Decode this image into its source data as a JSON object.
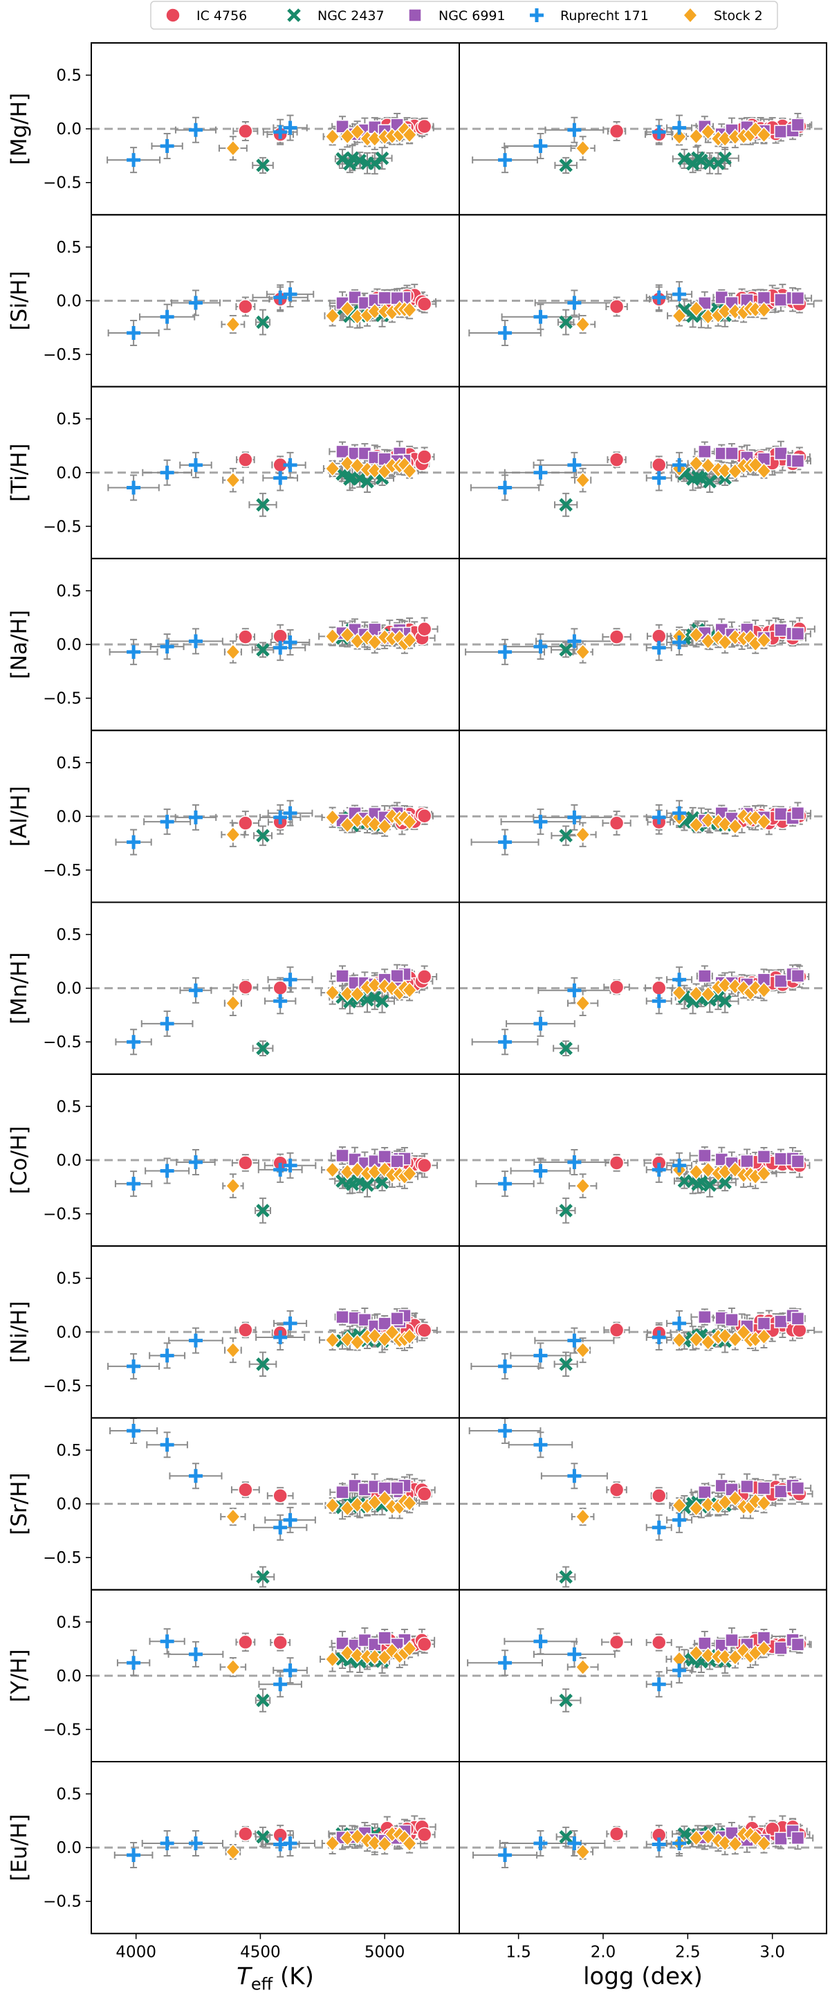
{
  "chart_data": {
    "type": "scatter",
    "title": "",
    "legend_position": "top-center",
    "legend": [
      {
        "name": "IC 4756",
        "color": "#e8475a",
        "marker": "circle"
      },
      {
        "name": "NGC 2437",
        "color": "#198a6a",
        "marker": "x"
      },
      {
        "name": "NGC 6991",
        "color": "#9b59b6",
        "marker": "square"
      },
      {
        "name": "Ruprecht 171",
        "color": "#1e90e8",
        "marker": "plus"
      },
      {
        "name": "Stock 2",
        "color": "#f5a623",
        "marker": "diamond"
      }
    ],
    "left_xaxis": {
      "label_main": "T",
      "label_sub": "eff",
      "label_unit": " (K)",
      "range": [
        3820,
        5300
      ],
      "ticks": [
        4000,
        4500,
        5000
      ],
      "tick_labels": [
        "4000",
        "4500",
        "5000"
      ]
    },
    "right_xaxis": {
      "label": "logg (dex)",
      "range": [
        1.15,
        3.32
      ],
      "ticks": [
        1.5,
        2.0,
        2.5,
        3.0
      ],
      "tick_labels": [
        "1.5",
        "2.0",
        "2.5",
        "3.0"
      ]
    },
    "yaxis": {
      "range": [
        -0.8,
        0.8
      ],
      "ticks": [
        0.5,
        0.0,
        -0.5
      ],
      "tick_labels": [
        "0.5",
        "0.0",
        "−0.5"
      ],
      "reference_line": 0.0
    },
    "panels": [
      {
        "ylabel": "[Mg/H]",
        "cluster_means": [
          -0.02,
          -0.3,
          -0.01,
          -0.05,
          -0.06
        ],
        "ruprecht": [
          -0.29,
          -0.16,
          -0.01,
          -0.03,
          0.01
        ],
        "ngc2437_cool": -0.34
      },
      {
        "ylabel": "[Si/H]",
        "cluster_means": [
          0.0,
          -0.12,
          0.0,
          -0.04,
          -0.1
        ],
        "ruprecht": [
          -0.3,
          -0.15,
          -0.02,
          0.03,
          0.06
        ],
        "ngc2437_cool": -0.2
      },
      {
        "ylabel": "[Ti/H]",
        "cluster_means": [
          0.12,
          -0.05,
          0.15,
          -0.05,
          0.05
        ],
        "ruprecht": [
          -0.14,
          0.0,
          0.07,
          -0.05,
          0.07
        ],
        "ngc2437_cool": -0.3
      },
      {
        "ylabel": "[Na/H]",
        "cluster_means": [
          0.1,
          0.1,
          0.1,
          -0.02,
          0.05
        ],
        "ruprecht": [
          -0.07,
          -0.02,
          0.03,
          -0.03,
          0.02
        ],
        "ngc2437_cool": -0.05
      },
      {
        "ylabel": "[Al/H]",
        "cluster_means": [
          -0.03,
          -0.05,
          0.0,
          -0.03,
          -0.05
        ],
        "ruprecht": [
          -0.24,
          -0.05,
          -0.01,
          -0.01,
          0.03
        ],
        "ngc2437_cool": -0.18
      },
      {
        "ylabel": "[Mn/H]",
        "cluster_means": [
          0.05,
          -0.1,
          0.08,
          0.0,
          -0.02
        ],
        "ruprecht": [
          -0.5,
          -0.33,
          -0.02,
          -0.12,
          0.08
        ],
        "ngc2437_cool": -0.56
      },
      {
        "ylabel": "[Co/H]",
        "cluster_means": [
          -0.05,
          -0.2,
          0.0,
          -0.08,
          -0.12
        ],
        "ruprecht": [
          -0.22,
          -0.1,
          -0.02,
          -0.09,
          -0.05
        ],
        "ngc2437_cool": -0.47
      },
      {
        "ylabel": "[Ni/H]",
        "cluster_means": [
          0.05,
          -0.05,
          0.1,
          -0.05,
          -0.05
        ],
        "ruprecht": [
          -0.32,
          -0.22,
          -0.08,
          -0.05,
          0.08
        ],
        "ngc2437_cool": -0.3
      },
      {
        "ylabel": "[Sr/H]",
        "cluster_means": [
          0.1,
          0.0,
          0.15,
          -0.2,
          0.0
        ],
        "ruprecht": [
          0.68,
          0.55,
          0.26,
          -0.22,
          -0.15
        ],
        "ngc2437_cool": -0.68
      },
      {
        "ylabel": "[Y/H]",
        "cluster_means": [
          0.3,
          0.15,
          0.3,
          -0.05,
          0.2
        ],
        "ruprecht": [
          0.12,
          0.32,
          0.2,
          -0.08,
          0.05
        ],
        "ngc2437_cool": -0.23
      },
      {
        "ylabel": "[Eu/H]",
        "cluster_means": [
          0.15,
          0.1,
          0.1,
          0.03,
          0.08
        ],
        "ruprecht": [
          -0.07,
          0.04,
          0.04,
          0.03,
          0.04
        ],
        "ngc2437_cool": 0.1
      }
    ]
  }
}
